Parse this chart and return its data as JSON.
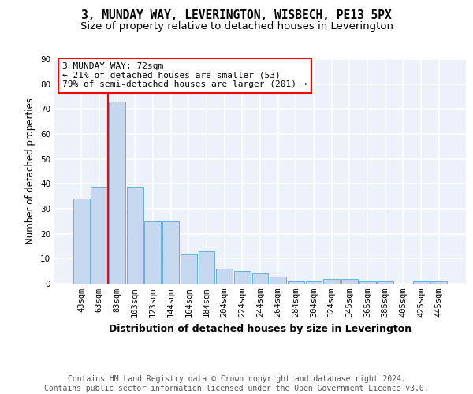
{
  "title": "3, MUNDAY WAY, LEVERINGTON, WISBECH, PE13 5PX",
  "subtitle": "Size of property relative to detached houses in Leverington",
  "xlabel": "Distribution of detached houses by size in Leverington",
  "ylabel": "Number of detached properties",
  "categories": [
    "43sqm",
    "63sqm",
    "83sqm",
    "103sqm",
    "123sqm",
    "144sqm",
    "164sqm",
    "184sqm",
    "204sqm",
    "224sqm",
    "244sqm",
    "264sqm",
    "284sqm",
    "304sqm",
    "324sqm",
    "345sqm",
    "365sqm",
    "385sqm",
    "405sqm",
    "425sqm",
    "445sqm"
  ],
  "values": [
    34,
    39,
    73,
    39,
    25,
    25,
    12,
    13,
    6,
    5,
    4,
    3,
    1,
    1,
    2,
    2,
    1,
    1,
    0,
    1,
    1
  ],
  "bar_color": "#c5d8ef",
  "bar_edge_color": "#6aaed6",
  "red_line_x": 1.5,
  "annotation_text": "3 MUNDAY WAY: 72sqm\n← 21% of detached houses are smaller (53)\n79% of semi-detached houses are larger (201) →",
  "ylim": [
    0,
    90
  ],
  "yticks": [
    0,
    10,
    20,
    30,
    40,
    50,
    60,
    70,
    80,
    90
  ],
  "footer": "Contains HM Land Registry data © Crown copyright and database right 2024.\nContains public sector information licensed under the Open Government Licence v3.0.",
  "background_color": "#edf2fa",
  "grid_color": "white",
  "title_fontsize": 10.5,
  "subtitle_fontsize": 9.5,
  "xlabel_fontsize": 9,
  "ylabel_fontsize": 8.5,
  "tick_fontsize": 7.5,
  "footer_fontsize": 7,
  "annot_fontsize": 8
}
